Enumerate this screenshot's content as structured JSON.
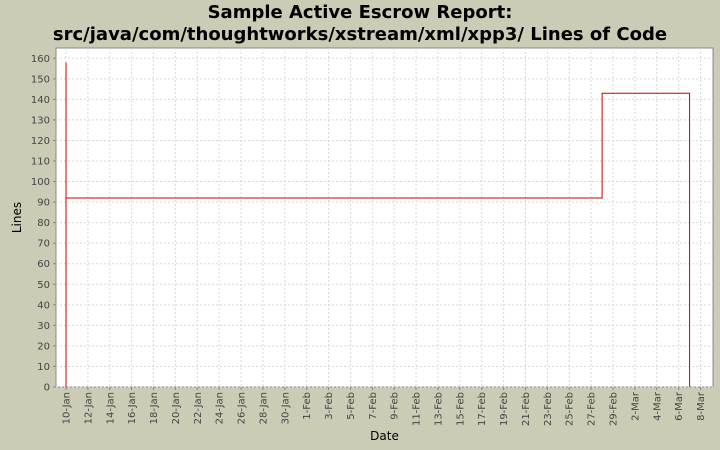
{
  "chart_data": {
    "type": "line",
    "title_line1": "Sample Active Escrow Report:",
    "title_line2": "src/java/com/thoughtworks/xstream/xml/xpp3/ Lines of Code",
    "xlabel": "Date",
    "ylabel": "Lines",
    "ylim": [
      0,
      165
    ],
    "y_ticks": [
      0,
      10,
      20,
      30,
      40,
      50,
      60,
      70,
      80,
      90,
      100,
      110,
      120,
      130,
      140,
      150,
      160
    ],
    "x_ticks": [
      "10-Jan",
      "12-Jan",
      "14-Jan",
      "16-Jan",
      "18-Jan",
      "20-Jan",
      "22-Jan",
      "24-Jan",
      "26-Jan",
      "28-Jan",
      "30-Jan",
      "1-Feb",
      "3-Feb",
      "5-Feb",
      "7-Feb",
      "9-Feb",
      "11-Feb",
      "13-Feb",
      "15-Feb",
      "17-Feb",
      "19-Feb",
      "21-Feb",
      "23-Feb",
      "25-Feb",
      "27-Feb",
      "29-Feb",
      "2-Mar",
      "4-Mar",
      "6-Mar",
      "8-Mar"
    ],
    "grid": true,
    "line_color": "#cc0000",
    "series": [
      {
        "step": true,
        "points": [
          {
            "x": "10-Jan",
            "y": 0
          },
          {
            "x": "10-Jan",
            "y": 158
          },
          {
            "x": "10-Jan",
            "y": 92
          },
          {
            "x": "28-Feb",
            "y": 92
          },
          {
            "x": "28-Feb",
            "y": 143
          },
          {
            "x": "7-Mar",
            "y": 143
          },
          {
            "x": "7-Mar",
            "y": 0
          }
        ]
      }
    ]
  }
}
